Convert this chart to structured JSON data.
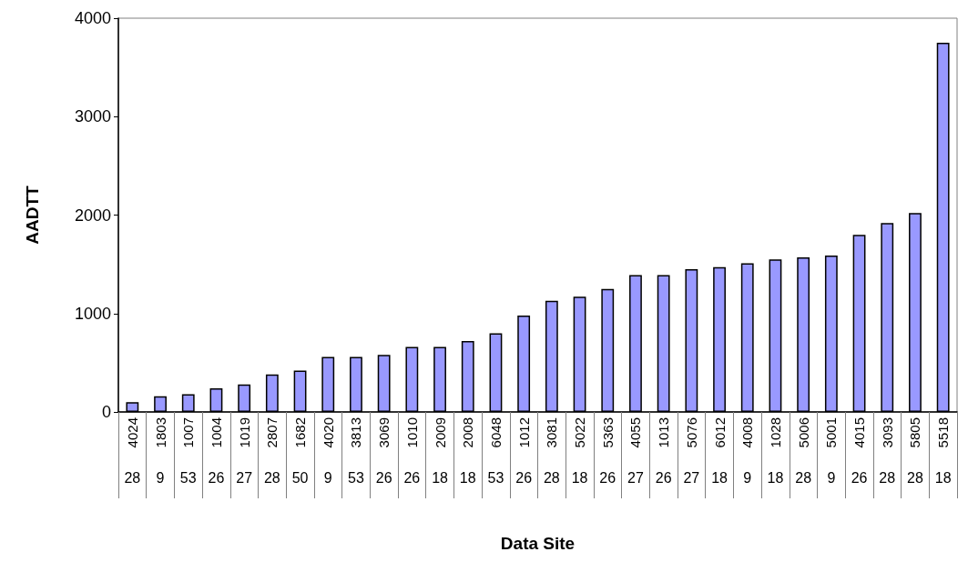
{
  "chart_data": {
    "type": "bar",
    "xlabel": "Data Site",
    "ylabel": "AADTT",
    "color": "#9999ff",
    "categories": [
      "4024",
      "1803",
      "1007",
      "1004",
      "1019",
      "2807",
      "1682",
      "4020",
      "3813",
      "3069",
      "1010",
      "2009",
      "2008",
      "6048",
      "1012",
      "3081",
      "5022",
      "5363",
      "4055",
      "1013",
      "5076",
      "6012",
      "4008",
      "1028",
      "5006",
      "5001",
      "4015",
      "3093",
      "5805",
      "5518"
    ],
    "values": [
      100,
      160,
      180,
      240,
      280,
      380,
      420,
      560,
      560,
      580,
      660,
      660,
      720,
      800,
      980,
      1130,
      1170,
      1250,
      1390,
      1390,
      1450,
      1470,
      1510,
      1550,
      1570,
      1590,
      1800,
      1920,
      2020,
      3750
    ],
    "annotations": [
      "28",
      "9",
      "53",
      "26",
      "27",
      "28",
      "50",
      "9",
      "53",
      "26",
      "26",
      "18",
      "18",
      "53",
      "26",
      "28",
      "18",
      "26",
      "27",
      "26",
      "27",
      "18",
      "9",
      "18",
      "28",
      "9",
      "26",
      "28",
      "28",
      "18"
    ],
    "ylim": [
      0,
      4000
    ],
    "yticks": [
      0,
      1000,
      2000,
      3000,
      4000
    ],
    "grid": false
  }
}
